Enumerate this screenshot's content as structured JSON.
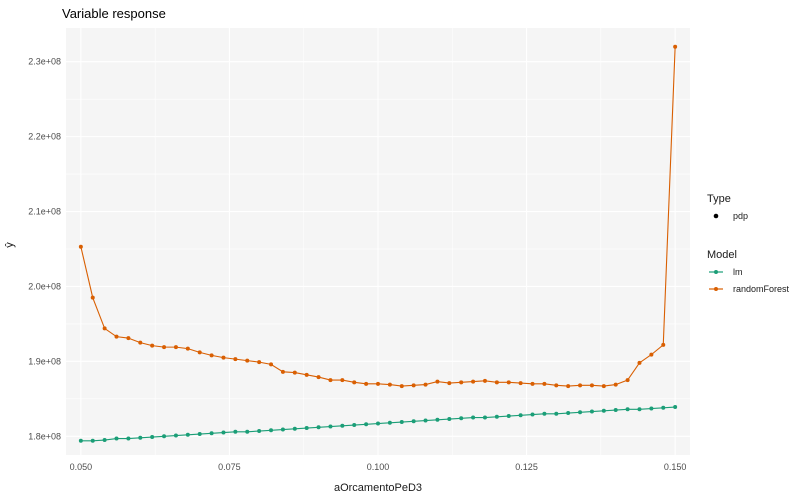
{
  "chart_data": {
    "type": "line",
    "title": "Variable response",
    "xlabel": "aOrcamentoPeD3",
    "ylabel": "ŷ",
    "xlim": [
      0.0475,
      0.1525
    ],
    "ylim": [
      177500000,
      234500000
    ],
    "x_ticks": [
      {
        "value": 0.05,
        "label": "0.050"
      },
      {
        "value": 0.075,
        "label": "0.075"
      },
      {
        "value": 0.1,
        "label": "0.100"
      },
      {
        "value": 0.125,
        "label": "0.125"
      },
      {
        "value": 0.15,
        "label": "0.150"
      }
    ],
    "y_ticks": [
      {
        "value": 180000000,
        "label": "1.8e+08"
      },
      {
        "value": 190000000,
        "label": "1.9e+08"
      },
      {
        "value": 200000000,
        "label": "2.0e+08"
      },
      {
        "value": 210000000,
        "label": "2.1e+08"
      },
      {
        "value": 220000000,
        "label": "2.2e+08"
      },
      {
        "value": 230000000,
        "label": "2.3e+08"
      }
    ],
    "grid": true,
    "x": [
      0.05,
      0.052,
      0.054,
      0.056,
      0.058,
      0.06,
      0.062,
      0.064,
      0.066,
      0.068,
      0.07,
      0.072,
      0.074,
      0.076,
      0.078,
      0.08,
      0.082,
      0.084,
      0.086,
      0.088,
      0.09,
      0.092,
      0.094,
      0.096,
      0.098,
      0.1,
      0.102,
      0.104,
      0.106,
      0.108,
      0.11,
      0.112,
      0.114,
      0.116,
      0.118,
      0.12,
      0.122,
      0.124,
      0.126,
      0.128,
      0.13,
      0.132,
      0.134,
      0.136,
      0.138,
      0.14,
      0.142,
      0.144,
      0.146,
      0.148,
      0.15
    ],
    "series": [
      {
        "name": "lm",
        "color": "#1b9e77",
        "values": [
          179400000,
          179400000,
          179500000,
          179700000,
          179700000,
          179800000,
          179900000,
          180000000,
          180100000,
          180200000,
          180300000,
          180400000,
          180500000,
          180600000,
          180600000,
          180700000,
          180800000,
          180900000,
          181000000,
          181100000,
          181200000,
          181300000,
          181400000,
          181500000,
          181600000,
          181700000,
          181800000,
          181900000,
          182000000,
          182100000,
          182200000,
          182300000,
          182400000,
          182500000,
          182500000,
          182600000,
          182700000,
          182800000,
          182900000,
          183000000,
          183000000,
          183100000,
          183200000,
          183300000,
          183400000,
          183500000,
          183600000,
          183600000,
          183700000,
          183800000,
          183900000
        ]
      },
      {
        "name": "randomForest",
        "color": "#d95f02",
        "values": [
          205300000,
          198500000,
          194400000,
          193300000,
          193100000,
          192500000,
          192100000,
          191900000,
          191900000,
          191700000,
          191200000,
          190800000,
          190500000,
          190300000,
          190100000,
          189900000,
          189600000,
          188600000,
          188500000,
          188200000,
          187900000,
          187500000,
          187500000,
          187200000,
          187000000,
          187000000,
          186900000,
          186700000,
          186800000,
          186900000,
          187300000,
          187100000,
          187200000,
          187300000,
          187400000,
          187200000,
          187200000,
          187100000,
          187000000,
          187000000,
          186800000,
          186700000,
          186800000,
          186800000,
          186700000,
          186900000,
          187500000,
          189800000,
          190900000,
          192200000,
          232000000
        ]
      }
    ],
    "legend": {
      "placement": "right",
      "type_title": "Type",
      "type_items": [
        "pdp"
      ],
      "model_title": "Model",
      "model_items": [
        "lm",
        "randomForest"
      ]
    }
  }
}
